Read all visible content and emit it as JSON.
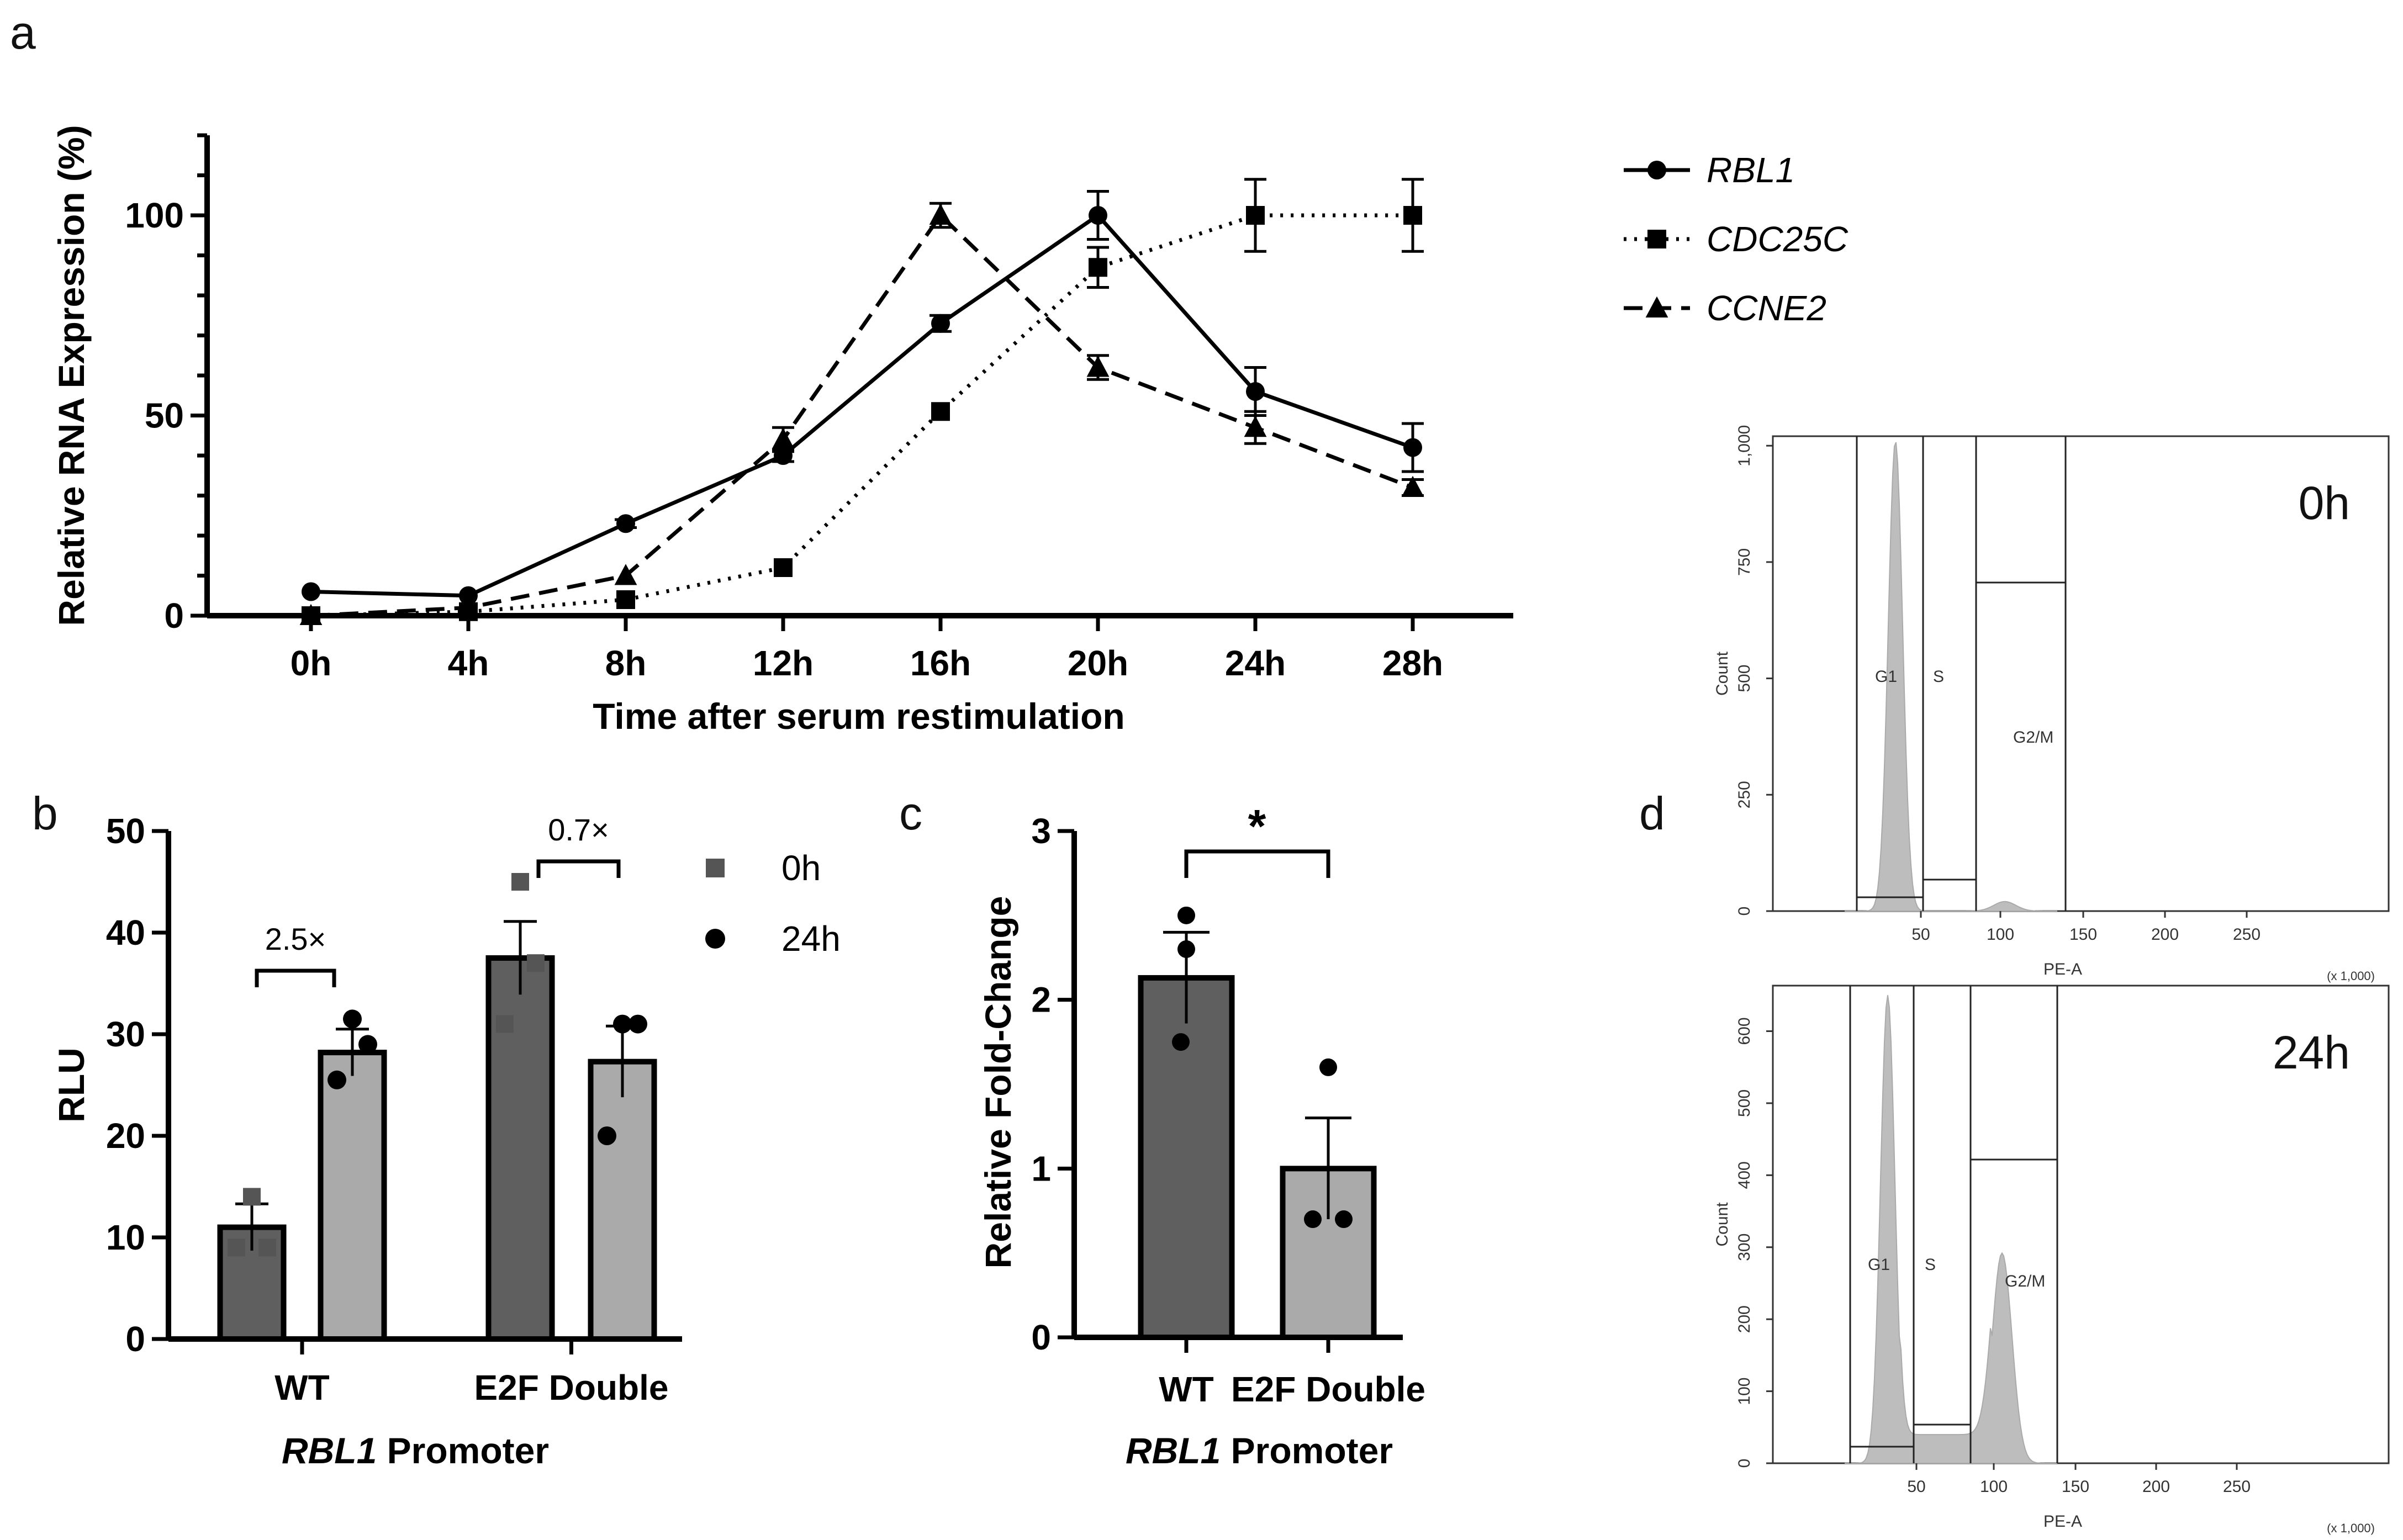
{
  "panels": {
    "a": "a",
    "b": "b",
    "c": "c",
    "d": "d"
  },
  "chart_data": [
    {
      "id": "a",
      "type": "line",
      "title": "",
      "xlabel": "Time after serum restimulation",
      "ylabel": "Relative RNA Expression (%)",
      "categories": [
        "0h",
        "4h",
        "8h",
        "12h",
        "16h",
        "20h",
        "24h",
        "28h"
      ],
      "ylim": [
        0,
        120
      ],
      "yticks": [
        "0",
        "50",
        "100"
      ],
      "legend_position": "top-right",
      "series": [
        {
          "name": "RBL1",
          "style": "solid",
          "marker": "circle",
          "values": [
            6,
            5,
            23,
            40,
            73,
            100,
            56,
            42
          ],
          "errors": [
            0,
            0,
            1,
            1.5,
            2,
            6,
            6,
            6
          ]
        },
        {
          "name": "CDC25C",
          "style": "dotted",
          "marker": "square",
          "values": [
            0,
            1,
            4,
            12,
            51,
            87,
            100,
            100
          ],
          "errors": [
            0,
            0,
            0,
            0,
            0,
            5,
            9,
            9
          ]
        },
        {
          "name": "CCNE2",
          "style": "dashed",
          "marker": "triangle",
          "values": [
            0,
            2,
            10,
            44,
            100,
            62,
            47,
            32
          ],
          "errors": [
            0,
            0,
            0,
            3,
            3,
            3,
            4,
            2
          ]
        }
      ]
    },
    {
      "id": "b",
      "type": "bar",
      "xlabel_italic": "RBL1",
      "xlabel_rest": " Promoter",
      "ylabel": "RLU",
      "categories": [
        "WT",
        "E2F Double"
      ],
      "ylim": [
        0,
        50
      ],
      "yticks": [
        "0",
        "10",
        "20",
        "30",
        "40",
        "50"
      ],
      "series": [
        {
          "name": "0h",
          "color": "#5f5f5f",
          "marker": "square",
          "values": [
            11,
            37.5
          ],
          "errors": [
            2.3,
            3.6
          ],
          "points": [
            [
              14,
              9,
              9
            ],
            [
              45,
              37,
              31
            ]
          ]
        },
        {
          "name": "24h",
          "color": "#aaaaaa",
          "marker": "circle",
          "values": [
            28.2,
            27.3
          ],
          "errors": [
            2.3,
            3.5
          ],
          "points": [
            [
              31.5,
              29,
              25.5
            ],
            [
              31,
              31,
              20
            ]
          ]
        }
      ],
      "annotations": [
        "2.5×",
        "0.7×"
      ]
    },
    {
      "id": "c",
      "type": "bar",
      "xlabel_italic": "RBL1",
      "xlabel_rest": " Promoter",
      "ylabel": "Relative Fold-Change",
      "categories": [
        "WT",
        "E2F Double"
      ],
      "ylim": [
        0,
        3
      ],
      "yticks": [
        "0",
        "1",
        "2",
        "3"
      ],
      "values": [
        2.13,
        1.0
      ],
      "errors": [
        0.27,
        0.3
      ],
      "colors": [
        "#5f5f5f",
        "#aaaaaa"
      ],
      "points": [
        [
          2.5,
          2.3,
          1.75
        ],
        [
          1.6,
          0.7,
          0.7
        ]
      ],
      "significance": "*"
    },
    {
      "id": "d",
      "type": "histogram",
      "plots": [
        {
          "label": "0h",
          "ylabel": "Count",
          "xlabel": "PE-A",
          "xscale_note": "(x 1,000)",
          "yticks": [
            "0",
            "250",
            "500",
            "750",
            "1,000"
          ],
          "xticks": [
            "50",
            "100",
            "150",
            "200",
            "250"
          ],
          "gates": [
            "G1",
            "S",
            "G2/M"
          ]
        },
        {
          "label": "24h",
          "ylabel": "Count",
          "xlabel": "PE-A",
          "xscale_note": "(x 1,000)",
          "yticks": [
            "0",
            "100",
            "200",
            "300",
            "400",
            "500",
            "600"
          ],
          "xticks": [
            "50",
            "100",
            "150",
            "200",
            "250"
          ],
          "gates": [
            "G1",
            "S",
            "G2/M"
          ]
        }
      ]
    }
  ]
}
